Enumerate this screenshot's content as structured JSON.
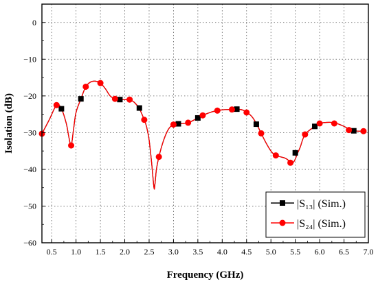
{
  "chart_data": {
    "type": "line",
    "xlabel": "Frequency (GHz)",
    "ylabel": "Isolation (dB)",
    "xlim": [
      0.3,
      7.0
    ],
    "ylim": [
      -60,
      5
    ],
    "xticks": [
      "0.5",
      "1.0",
      "1.5",
      "2.0",
      "2.5",
      "3.0",
      "3.5",
      "4.0",
      "4.5",
      "5.0",
      "5.5",
      "6.0",
      "6.5",
      "7.0"
    ],
    "yticks": [
      "0",
      "−10",
      "−20",
      "−30",
      "−40",
      "−50",
      "−60"
    ],
    "grid": true,
    "legend_position": "bottom-right",
    "curve": {
      "x": [
        0.3,
        0.45,
        0.6,
        0.7,
        0.8,
        0.85,
        0.9,
        0.95,
        1.0,
        1.1,
        1.2,
        1.3,
        1.4,
        1.5,
        1.6,
        1.7,
        1.8,
        1.9,
        2.0,
        2.1,
        2.2,
        2.3,
        2.4,
        2.45,
        2.5,
        2.55,
        2.6,
        2.62,
        2.65,
        2.7,
        2.8,
        2.9,
        3.0,
        3.1,
        3.3,
        3.5,
        3.6,
        3.8,
        4.0,
        4.2,
        4.3,
        4.45,
        4.6,
        4.7,
        4.8,
        4.9,
        5.0,
        5.1,
        5.3,
        5.45,
        5.55,
        5.6,
        5.7,
        5.9,
        6.0,
        6.2,
        6.35,
        6.5,
        6.65,
        6.8,
        6.95
      ],
      "y": [
        -30.3,
        -26.5,
        -22.5,
        -23.5,
        -27.5,
        -31.0,
        -33.5,
        -29.0,
        -24.5,
        -20.8,
        -17.5,
        -16.2,
        -16.0,
        -16.5,
        -18.0,
        -20.0,
        -20.8,
        -21.0,
        -21.0,
        -21.0,
        -21.8,
        -23.5,
        -26.5,
        -28.5,
        -32.0,
        -38.0,
        -45.0,
        -44.0,
        -40.0,
        -36.6,
        -32.0,
        -29.0,
        -27.8,
        -27.6,
        -27.3,
        -26.0,
        -25.3,
        -24.3,
        -23.8,
        -23.7,
        -23.6,
        -24.0,
        -25.5,
        -27.5,
        -30.2,
        -32.8,
        -35.0,
        -36.2,
        -37.0,
        -38.2,
        -35.5,
        -34.0,
        -30.5,
        -28.3,
        -27.5,
        -27.2,
        -27.5,
        -28.3,
        -29.3,
        -29.6,
        -29.5
      ]
    },
    "series": [
      {
        "name": "|S₁₃| (Sim.)",
        "color": "#000000",
        "marker": "square",
        "x": [
          0.7,
          1.1,
          1.9,
          2.3,
          3.1,
          3.5,
          4.3,
          4.7,
          5.5,
          5.9,
          6.7
        ],
        "y": [
          -23.5,
          -20.8,
          -21.0,
          -23.3,
          -27.6,
          -26.0,
          -23.6,
          -27.7,
          -35.5,
          -28.3,
          -29.5
        ]
      },
      {
        "name": "|S₂₄| (Sim.)",
        "color": "#ff0000",
        "marker": "circle",
        "x": [
          0.3,
          0.6,
          0.9,
          1.2,
          1.5,
          1.8,
          2.1,
          2.4,
          2.7,
          3.0,
          3.3,
          3.6,
          3.9,
          4.2,
          4.5,
          4.8,
          5.1,
          5.4,
          5.7,
          6.0,
          6.3,
          6.6,
          6.9
        ],
        "y": [
          -30.3,
          -22.5,
          -33.5,
          -17.5,
          -16.5,
          -20.8,
          -21.0,
          -26.5,
          -36.6,
          -27.8,
          -27.3,
          -25.3,
          -24.0,
          -23.7,
          -24.5,
          -30.2,
          -36.2,
          -38.2,
          -30.5,
          -27.5,
          -27.5,
          -29.3,
          -29.6
        ]
      }
    ]
  }
}
